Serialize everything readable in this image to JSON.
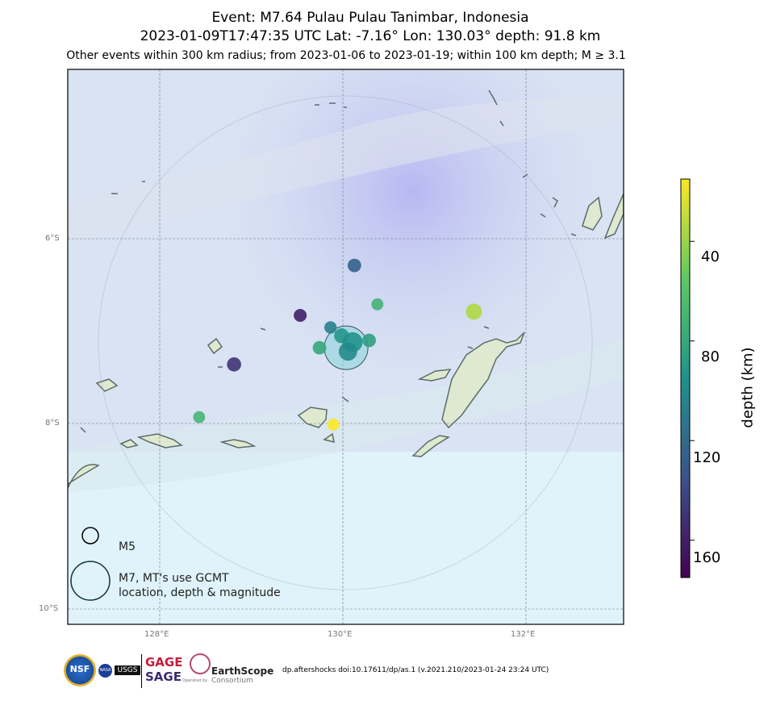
{
  "title": {
    "line1": "Event: M7.64 Pulau Pulau Tanimbar, Indonesia",
    "line2": "2023-01-09T17:47:35 UTC Lat: -7.16° Lon: 130.03° depth: 91.8 km",
    "line3": "Other events within 300 km radius; from 2023-01-06 to 2023-01-19; within 100 km depth; M ≥ 3.1"
  },
  "axes": {
    "lon_ticks": [
      "128°E",
      "130°E",
      "132°E"
    ],
    "lat_ticks": [
      "6°S",
      "8°S",
      "10°S"
    ]
  },
  "colorbar": {
    "title": "depth (km)",
    "ticks": [
      "40",
      "80",
      "120",
      "160"
    ],
    "colors": [
      "#fde725",
      "#5ec962",
      "#21918c",
      "#3b528b",
      "#440154"
    ]
  },
  "legend": {
    "small_label": "M5",
    "large_label_line1": "M7, MT's use GCMT",
    "large_label_line2": "location, depth & magnitude"
  },
  "logos": {
    "nsf": "NSF",
    "nasa": "NASA",
    "usgs": "USGS",
    "gage": "GAGE",
    "sage": "SAGE",
    "earthscope": "EarthScope",
    "consortium": "Consortium",
    "operated_by": "Operated by"
  },
  "footer": "dp.aftershocks doi:10.17611/dp/as.1 (v.2021.210/2023-01-24 23:24 UTC)",
  "chart_data": {
    "type": "scatter",
    "xlim": [
      127.0,
      133.05
    ],
    "ylim": [
      -10.15,
      -4.15
    ],
    "x_ticks": [
      128,
      130,
      132
    ],
    "y_ticks": [
      -6,
      -8,
      -10
    ],
    "color_scale": "viridis",
    "depth_range": [
      15,
      175
    ],
    "mainshock": {
      "lon": 130.03,
      "lat": -7.16,
      "depth": 91.8,
      "mag": 7.64
    },
    "events": [
      {
        "lon": 130.12,
        "lat": -6.27,
        "depth": 125,
        "mag": 4.6
      },
      {
        "lon": 130.37,
        "lat": -6.69,
        "depth": 72,
        "mag": 4.3
      },
      {
        "lon": 129.53,
        "lat": -6.81,
        "depth": 160,
        "mag": 4.5
      },
      {
        "lon": 129.86,
        "lat": -6.94,
        "depth": 105,
        "mag": 4.4
      },
      {
        "lon": 129.98,
        "lat": -7.03,
        "depth": 92,
        "mag": 4.8
      },
      {
        "lon": 130.1,
        "lat": -7.1,
        "depth": 95,
        "mag": 5.5
      },
      {
        "lon": 130.05,
        "lat": -7.2,
        "depth": 100,
        "mag": 5.3
      },
      {
        "lon": 130.28,
        "lat": -7.08,
        "depth": 85,
        "mag": 4.6
      },
      {
        "lon": 129.74,
        "lat": -7.16,
        "depth": 80,
        "mag": 4.6
      },
      {
        "lon": 128.81,
        "lat": -7.34,
        "depth": 150,
        "mag": 4.7
      },
      {
        "lon": 131.42,
        "lat": -6.77,
        "depth": 35,
        "mag": 5.0
      },
      {
        "lon": 128.43,
        "lat": -7.91,
        "depth": 70,
        "mag": 4.3
      },
      {
        "lon": 129.89,
        "lat": -7.99,
        "depth": 15,
        "mag": 4.3
      }
    ]
  }
}
